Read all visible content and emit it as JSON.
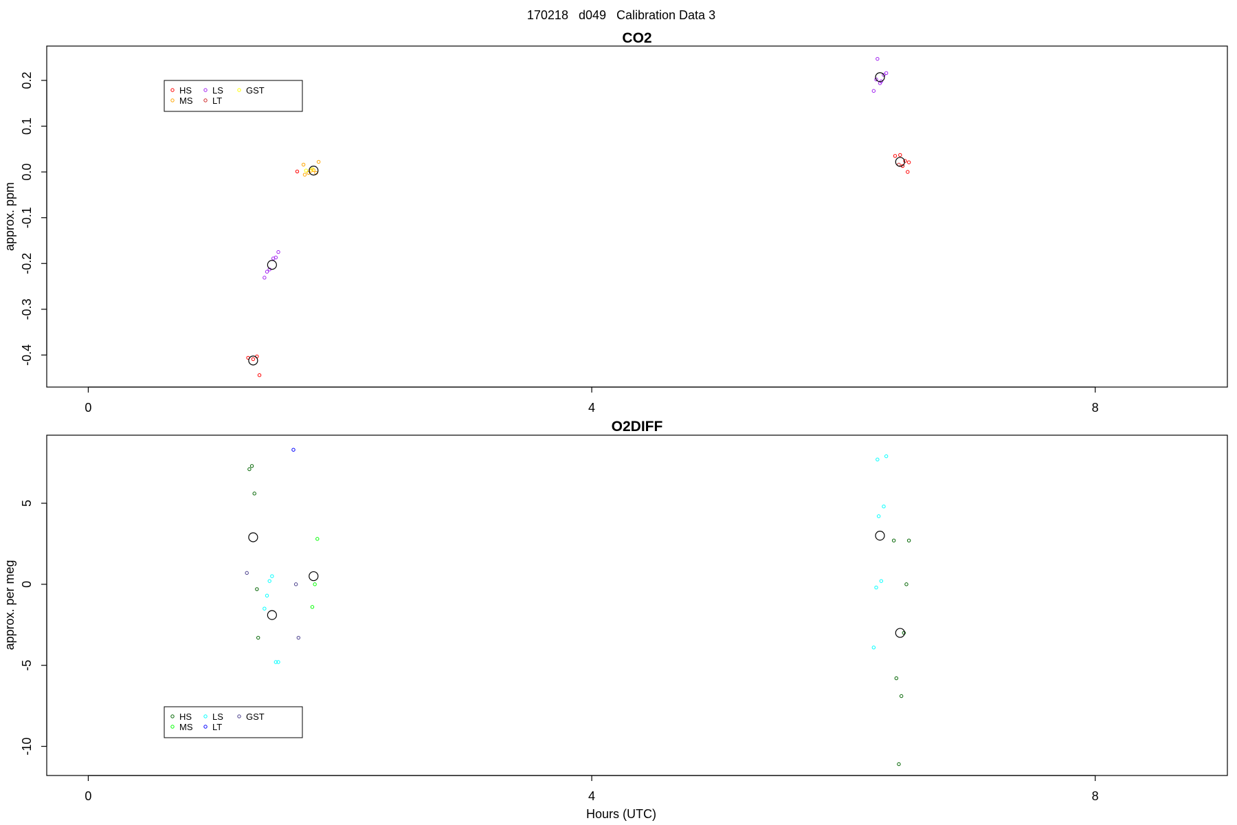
{
  "figure_title": "170218   d049   Calibration Data 3",
  "chart_data": [
    {
      "type": "scatter",
      "title": "CO2",
      "xlabel": "",
      "ylabel": "approx. ppm",
      "xlim": [
        -0.33,
        9.05
      ],
      "ylim": [
        -0.47,
        0.275
      ],
      "x_ticks": [
        0,
        4,
        8
      ],
      "x_tick_labels": [
        "0",
        "4",
        "8"
      ],
      "y_ticks": [
        -0.4,
        -0.3,
        -0.2,
        -0.1,
        0.0,
        0.1,
        0.2
      ],
      "y_tick_labels": [
        "-0.4",
        "-0.3",
        "-0.2",
        "-0.1",
        "0.0",
        "0.1",
        "0.2"
      ],
      "grid": false,
      "legend_position": "top-left",
      "legend": [
        {
          "label": "HS",
          "color": "#ff0000"
        },
        {
          "label": "MS",
          "color": "#ffa500"
        },
        {
          "label": "LS",
          "color": "#a020f0"
        },
        {
          "label": "LT",
          "color": "#cd2626"
        },
        {
          "label": "GST",
          "color": "#ffff00"
        }
      ],
      "series": [
        {
          "name": "HS",
          "color": "#ff0000",
          "points": [
            [
              1.27,
              -0.406
            ],
            [
              1.31,
              -0.409
            ],
            [
              1.34,
              -0.403
            ],
            [
              1.36,
              -0.444
            ],
            [
              1.66,
              0.001
            ],
            [
              6.41,
              0.035
            ],
            [
              6.45,
              0.037
            ],
            [
              6.47,
              0.013
            ],
            [
              6.49,
              0.024
            ],
            [
              6.51,
              0.0
            ],
            [
              6.52,
              0.021
            ]
          ]
        },
        {
          "name": "MS",
          "color": "#ffa500",
          "points": [
            [
              1.71,
              0.016
            ],
            [
              1.72,
              -0.006
            ],
            [
              1.75,
              -0.002
            ],
            [
              1.77,
              0.003
            ],
            [
              1.79,
              0.004
            ],
            [
              1.81,
              -0.002
            ],
            [
              1.83,
              0.022
            ]
          ]
        },
        {
          "name": "LS",
          "color": "#a020f0",
          "points": [
            [
              1.4,
              -0.231
            ],
            [
              1.42,
              -0.218
            ],
            [
              1.44,
              -0.213
            ],
            [
              1.47,
              -0.189
            ],
            [
              1.49,
              -0.187
            ],
            [
              1.51,
              -0.175
            ],
            [
              6.24,
              0.177
            ],
            [
              6.26,
              0.202
            ],
            [
              6.27,
              0.247
            ],
            [
              6.29,
              0.194
            ],
            [
              6.3,
              0.198
            ],
            [
              6.32,
              0.212
            ],
            [
              6.34,
              0.216
            ]
          ]
        },
        {
          "name": "LT",
          "color": "#cd2626",
          "points": [
            [
              6.44,
              0.016
            ]
          ]
        },
        {
          "name": "GST",
          "color": "#ffff00",
          "points": [
            [
              1.73,
              0.003
            ],
            [
              1.78,
              0.006
            ]
          ]
        },
        {
          "name": "",
          "color": "#000000",
          "size": "large",
          "points": [
            [
              1.31,
              -0.412
            ],
            [
              1.46,
              -0.203
            ],
            [
              1.79,
              0.003
            ],
            [
              6.29,
              0.207
            ],
            [
              6.45,
              0.022
            ]
          ]
        }
      ]
    },
    {
      "type": "scatter",
      "title": "O2DIFF",
      "xlabel": "Hours (UTC)",
      "ylabel": "approx. per meg",
      "xlim": [
        -0.33,
        9.05
      ],
      "ylim": [
        -11.8,
        9.2
      ],
      "x_ticks": [
        0,
        4,
        8
      ],
      "x_tick_labels": [
        "0",
        "4",
        "8"
      ],
      "y_ticks": [
        -10,
        -5,
        0,
        5
      ],
      "y_tick_labels": [
        "-10",
        "-5",
        "0",
        "5"
      ],
      "grid": false,
      "legend_position": "bottom-left",
      "legend": [
        {
          "label": "HS",
          "color": "#006400"
        },
        {
          "label": "MS",
          "color": "#00ff00"
        },
        {
          "label": "LS",
          "color": "#00ffff"
        },
        {
          "label": "LT",
          "color": "#0000ff"
        },
        {
          "label": "GST",
          "color": "#483d8b"
        }
      ],
      "series": [
        {
          "name": "HS",
          "color": "#006400",
          "points": [
            [
              1.28,
              7.1
            ],
            [
              1.3,
              7.3
            ],
            [
              1.32,
              5.6
            ],
            [
              1.34,
              -0.3
            ],
            [
              1.35,
              -3.3
            ],
            [
              6.4,
              2.7
            ],
            [
              6.42,
              -5.8
            ],
            [
              6.44,
              -11.1
            ],
            [
              6.46,
              -6.9
            ],
            [
              6.48,
              -3.0
            ],
            [
              6.5,
              0.0
            ],
            [
              6.52,
              2.7
            ]
          ]
        },
        {
          "name": "MS",
          "color": "#00ff00",
          "points": [
            [
              1.78,
              -1.4
            ],
            [
              1.8,
              0.0
            ],
            [
              1.82,
              2.8
            ]
          ]
        },
        {
          "name": "LS",
          "color": "#00ffff",
          "points": [
            [
              1.4,
              -1.5
            ],
            [
              1.42,
              -0.7
            ],
            [
              1.44,
              0.2
            ],
            [
              1.46,
              0.5
            ],
            [
              1.49,
              -4.8
            ],
            [
              1.51,
              -4.8
            ],
            [
              6.24,
              -3.9
            ],
            [
              6.26,
              -0.2
            ],
            [
              6.27,
              7.7
            ],
            [
              6.28,
              4.2
            ],
            [
              6.3,
              0.2
            ],
            [
              6.32,
              4.8
            ],
            [
              6.34,
              7.9
            ]
          ]
        },
        {
          "name": "LT",
          "color": "#0000ff",
          "points": [
            [
              1.63,
              8.3
            ]
          ]
        },
        {
          "name": "GST",
          "color": "#483d8b",
          "points": [
            [
              1.26,
              0.7
            ],
            [
              1.65,
              0.0
            ],
            [
              1.67,
              -3.3
            ]
          ]
        },
        {
          "name": "",
          "color": "#000000",
          "size": "large",
          "points": [
            [
              1.31,
              2.9
            ],
            [
              1.46,
              -1.9
            ],
            [
              1.79,
              0.5
            ],
            [
              6.29,
              3.0
            ],
            [
              6.45,
              -3.0
            ]
          ]
        }
      ]
    }
  ]
}
